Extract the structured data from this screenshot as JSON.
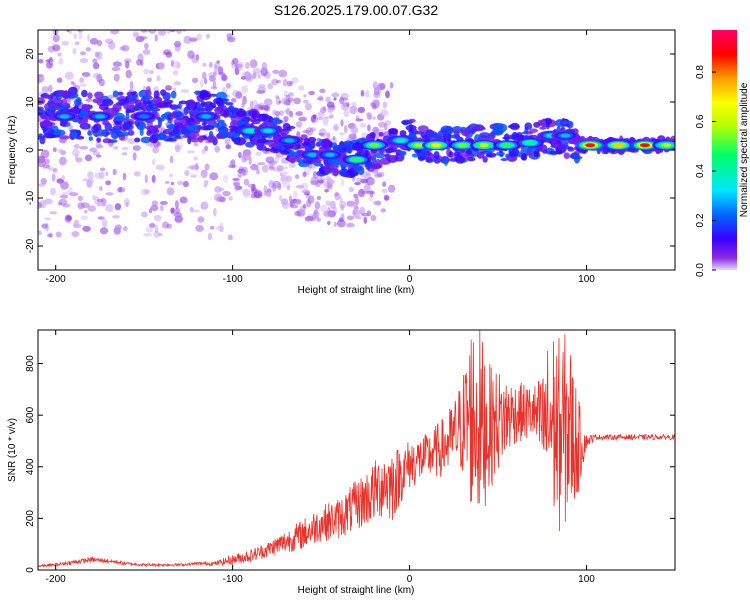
{
  "figure": {
    "title": "S126.2025.179.00.07.G32"
  },
  "colorbar": {
    "label": "Normalized spectral amplitude",
    "ticks": [
      "0.0",
      "0.2",
      "0.4",
      "0.6",
      "0.8"
    ],
    "tick_values": [
      0.0,
      0.2,
      0.4,
      0.6,
      0.8
    ],
    "range": [
      0,
      0.97
    ],
    "colors": [
      "#e6dcff",
      "#8a2be2",
      "#3a00ff",
      "#0066ff",
      "#00e5ff",
      "#00ff66",
      "#b6ff00",
      "#ffff00",
      "#ff9900",
      "#ff0000",
      "#ff0066"
    ]
  },
  "chart_data": [
    {
      "type": "heatmap",
      "xlabel": "Height of straight line (km)",
      "ylabel": "Frequency (Hz)",
      "xlim": [
        -210,
        150
      ],
      "ylim": [
        -25,
        25
      ],
      "xticks": [
        -200,
        -100,
        0,
        100
      ],
      "xtick_labels": [
        "-200",
        "-100",
        "0",
        "100"
      ],
      "yticks": [
        -20,
        -10,
        0,
        10,
        20
      ],
      "ytick_labels": [
        "-20",
        "-10",
        "0",
        "10",
        "20"
      ],
      "grid": false,
      "ridge": [
        {
          "x": -205,
          "y": 7
        },
        {
          "x": -190,
          "y": 7.5
        },
        {
          "x": -175,
          "y": 6.5
        },
        {
          "x": -160,
          "y": 7
        },
        {
          "x": -145,
          "y": 7
        },
        {
          "x": -130,
          "y": 7
        },
        {
          "x": -115,
          "y": 7
        },
        {
          "x": -105,
          "y": 6.5
        },
        {
          "x": -95,
          "y": 5
        },
        {
          "x": -85,
          "y": 4
        },
        {
          "x": -75,
          "y": 3
        },
        {
          "x": -65,
          "y": 1
        },
        {
          "x": -55,
          "y": -1
        },
        {
          "x": -45,
          "y": -2
        },
        {
          "x": -35,
          "y": -2
        },
        {
          "x": -25,
          "y": -1
        },
        {
          "x": -15,
          "y": 0.5
        },
        {
          "x": -5,
          "y": 2
        },
        {
          "x": 0,
          "y": 3
        },
        {
          "x": 10,
          "y": 1
        },
        {
          "x": 25,
          "y": 1
        },
        {
          "x": 40,
          "y": 1.5
        },
        {
          "x": 55,
          "y": 1.5
        },
        {
          "x": 70,
          "y": 2
        },
        {
          "x": 85,
          "y": 3
        },
        {
          "x": 95,
          "y": 1
        },
        {
          "x": 110,
          "y": 1
        },
        {
          "x": 125,
          "y": 1
        },
        {
          "x": 145,
          "y": 1
        }
      ],
      "peaks": [
        {
          "x": -195,
          "y": 7,
          "amp": 0.3
        },
        {
          "x": -175,
          "y": 7,
          "amp": 0.3
        },
        {
          "x": -150,
          "y": 7,
          "amp": 0.25
        },
        {
          "x": -115,
          "y": 7,
          "amp": 0.3
        },
        {
          "x": -90,
          "y": 4,
          "amp": 0.4
        },
        {
          "x": -80,
          "y": 4,
          "amp": 0.35
        },
        {
          "x": -68,
          "y": 2,
          "amp": 0.3
        },
        {
          "x": -55,
          "y": -1,
          "amp": 0.3
        },
        {
          "x": -45,
          "y": -1,
          "amp": 0.3
        },
        {
          "x": -30,
          "y": -2,
          "amp": 0.5
        },
        {
          "x": -20,
          "y": 1,
          "amp": 0.55
        },
        {
          "x": -5,
          "y": 2,
          "amp": 0.4
        },
        {
          "x": 5,
          "y": 1,
          "amp": 0.6
        },
        {
          "x": 15,
          "y": 1,
          "amp": 0.7
        },
        {
          "x": 30,
          "y": 1,
          "amp": 0.55
        },
        {
          "x": 42,
          "y": 1,
          "amp": 0.65
        },
        {
          "x": 55,
          "y": 1,
          "amp": 0.5
        },
        {
          "x": 68,
          "y": 1.5,
          "amp": 0.45
        },
        {
          "x": 80,
          "y": 3,
          "amp": 0.35
        },
        {
          "x": 88,
          "y": 3,
          "amp": 0.3
        },
        {
          "x": 102,
          "y": 1,
          "amp": 0.95
        },
        {
          "x": 118,
          "y": 1,
          "amp": 0.75
        },
        {
          "x": 133,
          "y": 1,
          "amp": 0.9
        },
        {
          "x": 145,
          "y": 1,
          "amp": 0.6
        }
      ]
    },
    {
      "type": "line",
      "xlabel": "Height of straight line (km)",
      "ylabel": "SNR (10 * v/v)",
      "xlim": [
        -210,
        150
      ],
      "ylim": [
        0,
        930
      ],
      "xticks": [
        -200,
        -100,
        0,
        100
      ],
      "xtick_labels": [
        "-200",
        "-100",
        "0",
        "100"
      ],
      "yticks": [
        0,
        200,
        400,
        600,
        800
      ],
      "ytick_labels": [
        "0",
        "200",
        "400",
        "600",
        "800"
      ],
      "grid": false,
      "series": [
        {
          "color": "#e8322b",
          "x": [
            -210,
            -200,
            -190,
            -180,
            -170,
            -160,
            -150,
            -140,
            -130,
            -120,
            -110,
            -100,
            -90,
            -80,
            -70,
            -60,
            -50,
            -40,
            -30,
            -20,
            -15,
            -10,
            -5,
            0,
            10,
            20,
            25,
            30,
            35,
            40,
            45,
            50,
            60,
            70,
            75,
            80,
            85,
            90,
            95,
            100,
            105,
            110,
            120,
            130,
            140,
            150
          ],
          "y": [
            15,
            20,
            30,
            40,
            35,
            25,
            20,
            20,
            20,
            25,
            25,
            40,
            55,
            80,
            110,
            140,
            180,
            200,
            250,
            300,
            340,
            330,
            370,
            410,
            440,
            480,
            520,
            560,
            600,
            560,
            550,
            580,
            610,
            610,
            560,
            580,
            520,
            560,
            480,
            500,
            515,
            515,
            515,
            515,
            515,
            515
          ],
          "noise": [
            4,
            6,
            8,
            10,
            8,
            6,
            5,
            5,
            5,
            6,
            8,
            20,
            25,
            30,
            45,
            60,
            70,
            80,
            100,
            120,
            140,
            150,
            110,
            100,
            90,
            120,
            140,
            200,
            380,
            380,
            250,
            200,
            120,
            110,
            200,
            380,
            380,
            380,
            200,
            25,
            10,
            10,
            10,
            10,
            10,
            10
          ]
        }
      ]
    }
  ]
}
